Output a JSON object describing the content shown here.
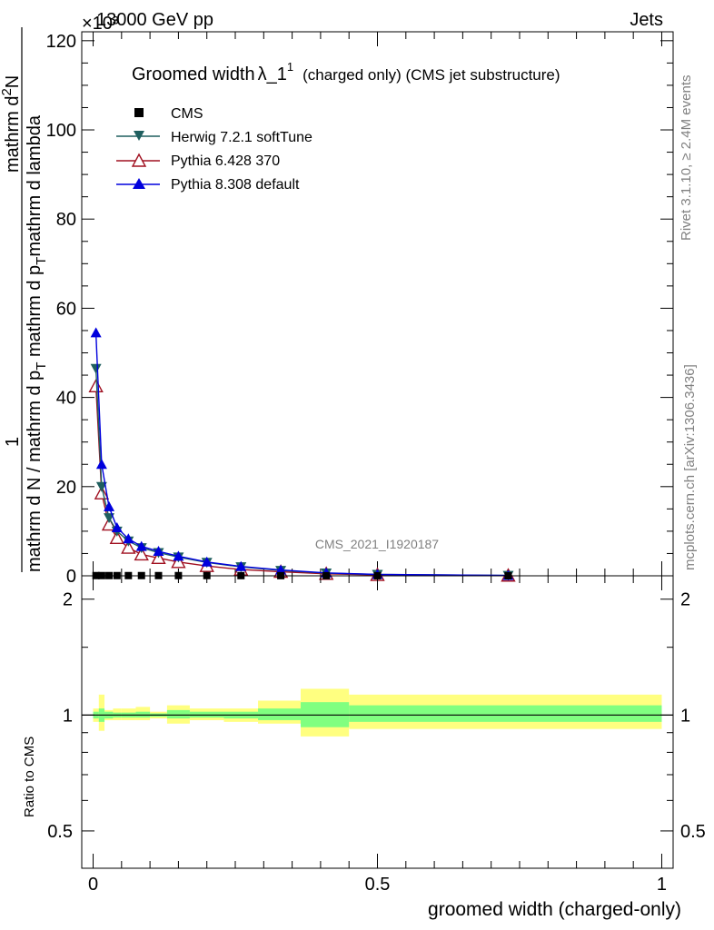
{
  "header": {
    "exponent": "×10³",
    "energy_label": "13000 GeV pp",
    "process_label": "Jets"
  },
  "side": {
    "rivet_label": "Rivet 3.1.10, ≥ 2.4M events",
    "mcplots_label": "mcplots.cern.ch [arXiv:1306.3436]"
  },
  "main_plot": {
    "title_main": "Groomed width",
    "title_lambda": "λ_1",
    "title_sup": "1",
    "title_detail": "(charged only) (CMS jet substructure)",
    "ylabel_one": "1",
    "ylabel_den": "mathrm d N / mathrm d p",
    "ylabel_den_sub": "T",
    "ylabel_num_line1": "mathrm d",
    "ylabel_num_sup": "2",
    "ylabel_num_N": "N",
    "ylabel_num_line2a": "mathrm d p",
    "ylabel_num_line2b": "mathrm d lambda",
    "ylabel_num_sub": "T",
    "watermark": "CMS_2021_I1920187",
    "ylim": [
      0,
      122
    ],
    "yticks": [
      "0",
      "20",
      "40",
      "60",
      "80",
      "100",
      "120"
    ]
  },
  "ratio_plot": {
    "ylabel": "Ratio to CMS",
    "yticks": [
      "0.5",
      "1",
      "2"
    ],
    "ylim": [
      0.4,
      2.3
    ]
  },
  "xaxis": {
    "label": "groomed width (charged-only)",
    "xlim": [
      -0.02,
      1.02
    ],
    "xticks": [
      "0",
      "0.5",
      "1"
    ]
  },
  "legend": {
    "cms": "CMS",
    "herwig": "Herwig 7.2.1 softTune",
    "pythia6": "Pythia 6.428 370",
    "pythia8": "Pythia 8.308 default"
  },
  "colors": {
    "cms": "#000000",
    "herwig": "#1f5f5f",
    "pythia6": "#a01020",
    "pythia8": "#0000dd",
    "band_stat": "#80ff80",
    "band_total": "#ffff80"
  },
  "chart_data": {
    "type": "line",
    "x": [
      0.005,
      0.015,
      0.028,
      0.042,
      0.062,
      0.085,
      0.115,
      0.15,
      0.2,
      0.26,
      0.33,
      0.41,
      0.5,
      0.73
    ],
    "series": [
      {
        "name": "CMS",
        "marker": "square",
        "values": [
          0.05,
          0.05,
          0.05,
          0.05,
          0.05,
          0.05,
          0.05,
          0.05,
          0.05,
          0.04,
          0.03,
          0.02,
          0.01,
          0.001
        ]
      },
      {
        "name": "Herwig 7.2.1 softTune",
        "marker": "triangle-down",
        "values": [
          46.5,
          20.0,
          13.0,
          10.0,
          7.8,
          6.3,
          5.2,
          4.2,
          3.0,
          2.0,
          1.2,
          0.6,
          0.3,
          0.08
        ]
      },
      {
        "name": "Pythia 6.428 370",
        "marker": "triangle-up-open",
        "values": [
          42.5,
          18.5,
          11.5,
          8.5,
          6.3,
          4.8,
          4.0,
          3.1,
          2.2,
          1.4,
          0.9,
          0.45,
          0.2,
          0.05
        ]
      },
      {
        "name": "Pythia 8.308 default",
        "marker": "triangle-up",
        "values": [
          54.5,
          25.0,
          15.5,
          10.8,
          8.3,
          6.6,
          5.5,
          4.4,
          3.1,
          2.1,
          1.3,
          0.65,
          0.3,
          0.08
        ]
      }
    ],
    "ratio_bands": [
      {
        "x0": 0.0,
        "x1": 0.01,
        "stat": [
          0.98,
          1.02
        ],
        "total": [
          0.96,
          1.04
        ]
      },
      {
        "x0": 0.01,
        "x1": 0.02,
        "stat": [
          0.96,
          1.04
        ],
        "total": [
          0.91,
          1.13
        ]
      },
      {
        "x0": 0.02,
        "x1": 0.035,
        "stat": [
          0.98,
          1.02
        ],
        "total": [
          0.97,
          1.03
        ]
      },
      {
        "x0": 0.035,
        "x1": 0.05,
        "stat": [
          0.985,
          1.015
        ],
        "total": [
          0.97,
          1.04
        ]
      },
      {
        "x0": 0.05,
        "x1": 0.075,
        "stat": [
          0.985,
          1.015
        ],
        "total": [
          0.97,
          1.04
        ]
      },
      {
        "x0": 0.075,
        "x1": 0.1,
        "stat": [
          0.985,
          1.02
        ],
        "total": [
          0.97,
          1.05
        ]
      },
      {
        "x0": 0.1,
        "x1": 0.13,
        "stat": [
          0.99,
          1.01
        ],
        "total": [
          0.98,
          1.02
        ]
      },
      {
        "x0": 0.13,
        "x1": 0.17,
        "stat": [
          0.98,
          1.03
        ],
        "total": [
          0.95,
          1.06
        ]
      },
      {
        "x0": 0.17,
        "x1": 0.23,
        "stat": [
          0.985,
          1.02
        ],
        "total": [
          0.97,
          1.04
        ]
      },
      {
        "x0": 0.23,
        "x1": 0.29,
        "stat": [
          0.98,
          1.02
        ],
        "total": [
          0.96,
          1.04
        ]
      },
      {
        "x0": 0.29,
        "x1": 0.365,
        "stat": [
          0.97,
          1.04
        ],
        "total": [
          0.95,
          1.09
        ]
      },
      {
        "x0": 0.365,
        "x1": 0.45,
        "stat": [
          0.93,
          1.08
        ],
        "total": [
          0.88,
          1.17
        ]
      },
      {
        "x0": 0.45,
        "x1": 1.0,
        "stat": [
          0.96,
          1.06
        ],
        "total": [
          0.92,
          1.13
        ]
      }
    ]
  }
}
